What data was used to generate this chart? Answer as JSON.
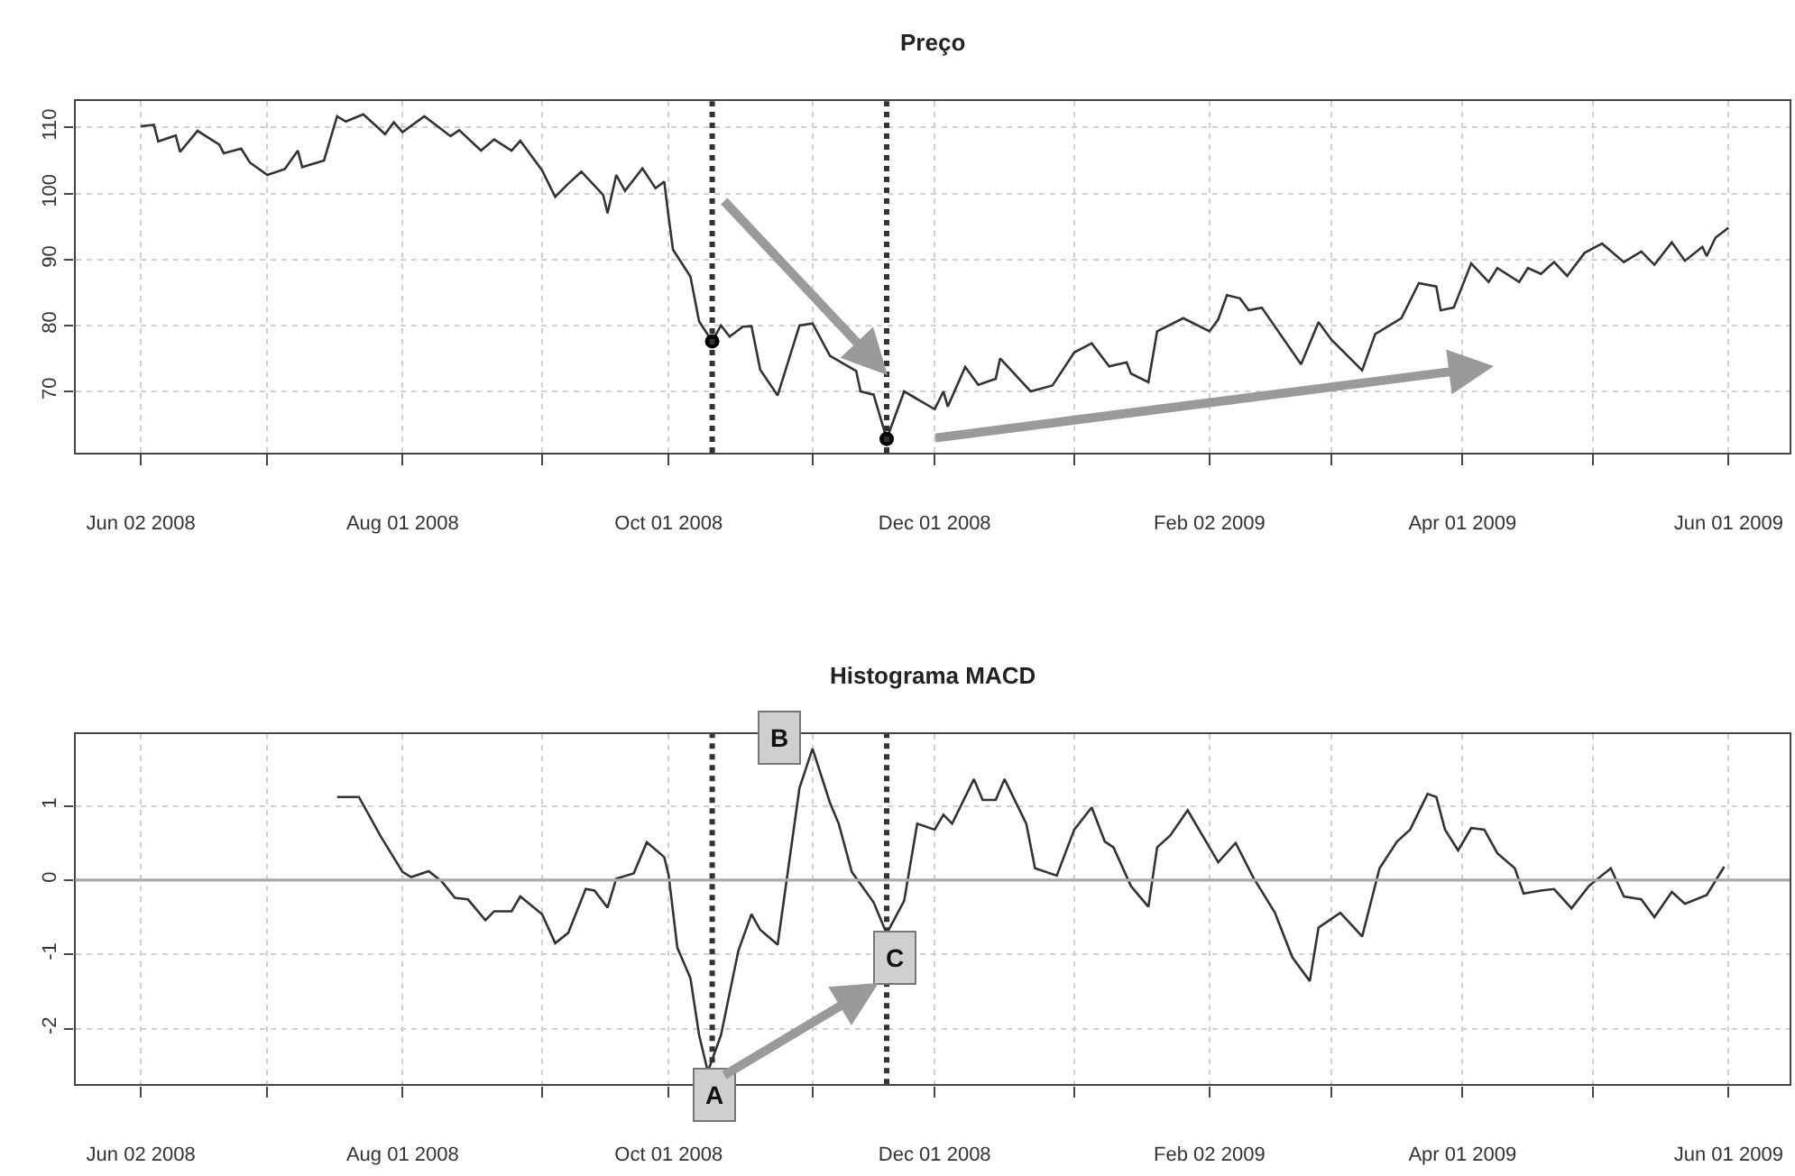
{
  "chart_data": [
    {
      "type": "line",
      "title": "Preço",
      "x": [
        "2008-06-02",
        "2008-06-05",
        "2008-06-06",
        "2008-06-10",
        "2008-06-11",
        "2008-06-15",
        "2008-06-20",
        "2008-06-21",
        "2008-06-25",
        "2008-06-27",
        "2008-07-01",
        "2008-07-05",
        "2008-07-08",
        "2008-07-09",
        "2008-07-14",
        "2008-07-17",
        "2008-07-19",
        "2008-07-23",
        "2008-07-28",
        "2008-07-30",
        "2008-08-01",
        "2008-08-06",
        "2008-08-12",
        "2008-08-14",
        "2008-08-19",
        "2008-08-22",
        "2008-08-26",
        "2008-08-28",
        "2008-09-02",
        "2008-09-05",
        "2008-09-08",
        "2008-09-11",
        "2008-09-16",
        "2008-09-17",
        "2008-09-19",
        "2008-09-21",
        "2008-09-25",
        "2008-09-28",
        "2008-09-30",
        "2008-10-01",
        "2008-10-02",
        "2008-10-06",
        "2008-10-08",
        "2008-10-11",
        "2008-10-13",
        "2008-10-15",
        "2008-10-18",
        "2008-10-20",
        "2008-10-22",
        "2008-10-26",
        "2008-10-31",
        "2008-11-03",
        "2008-11-07",
        "2008-11-13",
        "2008-11-14",
        "2008-11-17",
        "2008-11-20",
        "2008-11-24",
        "2008-12-01",
        "2008-12-03",
        "2008-12-04",
        "2008-12-08",
        "2008-12-11",
        "2008-12-15",
        "2008-12-16",
        "2008-12-23",
        "2008-12-28",
        "2009-01-02",
        "2009-01-06",
        "2009-01-10",
        "2009-01-14",
        "2009-01-15",
        "2009-01-19",
        "2009-01-21",
        "2009-01-27",
        "2009-02-02",
        "2009-02-04",
        "2009-02-06",
        "2009-02-09",
        "2009-02-11",
        "2009-02-14",
        "2009-02-23",
        "2009-02-27",
        "2009-03-02",
        "2009-03-09",
        "2009-03-12",
        "2009-03-18",
        "2009-03-22",
        "2009-03-26",
        "2009-03-27",
        "2009-03-30",
        "2009-04-03",
        "2009-04-07",
        "2009-04-09",
        "2009-04-14",
        "2009-04-16",
        "2009-04-19",
        "2009-04-22",
        "2009-04-25",
        "2009-04-29",
        "2009-05-03",
        "2009-05-08",
        "2009-05-12",
        "2009-05-15",
        "2009-05-19",
        "2009-05-22",
        "2009-05-26",
        "2009-05-27",
        "2009-05-29",
        "2009-06-01"
      ],
      "series": [
        {
          "color": "#333333",
          "values": [
            110.2,
            110.4,
            107.9,
            108.8,
            106.3,
            109.5,
            107.4,
            106.1,
            106.8,
            104.7,
            102.8,
            103.7,
            106.5,
            104.0,
            105.0,
            111.7,
            110.9,
            112.0,
            109.0,
            110.8,
            109.3,
            111.7,
            108.7,
            109.6,
            106.5,
            108.2,
            106.5,
            108.0,
            103.5,
            99.5,
            101.5,
            103.3,
            99.8,
            97.0,
            102.8,
            100.4,
            103.8,
            100.8,
            101.8,
            96.5,
            91.5,
            87.4,
            80.6,
            77.6,
            80.0,
            78.3,
            79.8,
            79.9,
            73.3,
            69.4,
            80.0,
            80.3,
            75.4,
            73.1,
            70.0,
            69.5,
            62.8,
            70.0,
            67.3,
            70.0,
            67.7,
            73.7,
            71.0,
            71.9,
            75.0,
            70.0,
            70.9,
            75.9,
            77.3,
            73.8,
            74.4,
            72.7,
            71.4,
            79.1,
            81.1,
            79.1,
            80.9,
            84.6,
            84.1,
            82.3,
            82.7,
            74.1,
            80.5,
            77.8,
            73.2,
            78.7,
            81.1,
            86.4,
            85.9,
            82.3,
            82.7,
            89.4,
            86.6,
            88.7,
            86.6,
            88.7,
            87.8,
            89.6,
            87.5,
            91.0,
            92.4,
            89.6,
            91.2,
            89.2,
            92.6,
            89.8,
            91.9,
            90.5,
            93.3,
            94.8
          ]
        },
        {
          "type": "scatter",
          "color": "#000000",
          "x": [
            "2008-10-11",
            "2008-11-20"
          ],
          "values": [
            77.6,
            62.8
          ]
        }
      ],
      "xlim": [
        "2008-05-18",
        "2009-06-15"
      ],
      "xticks": [
        {
          "value": "2008-06-02",
          "label": "Jun 02 2008"
        },
        {
          "value": "2008-07-01",
          "label": null
        },
        {
          "value": "2008-08-01",
          "label": "Aug 01 2008"
        },
        {
          "value": "2008-09-02",
          "label": null
        },
        {
          "value": "2008-10-01",
          "label": "Oct 01 2008"
        },
        {
          "value": "2008-11-03",
          "label": null
        },
        {
          "value": "2008-12-01",
          "label": "Dec 01 2008"
        },
        {
          "value": "2009-01-02",
          "label": null
        },
        {
          "value": "2009-02-02",
          "label": "Feb 02 2009"
        },
        {
          "value": "2009-03-02",
          "label": null
        },
        {
          "value": "2009-04-01",
          "label": "Apr 01 2009"
        },
        {
          "value": "2009-05-01",
          "label": null
        },
        {
          "value": "2009-06-01",
          "label": "Jun 01 2009"
        }
      ],
      "ylim": [
        60.7,
        114
      ],
      "yticks": [
        70,
        80,
        90,
        100,
        110
      ],
      "grid": true,
      "ref_lines": [
        {
          "axis": "x",
          "value": "2008-10-11",
          "line_style": "dotted",
          "color": "#333333"
        },
        {
          "axis": "x",
          "value": "2008-11-20",
          "line_style": "dotted",
          "color": "#333333"
        }
      ]
    },
    {
      "type": "line",
      "title": "Histograma MACD",
      "x": [
        "2008-07-17",
        "2008-07-22",
        "2008-07-27",
        "2008-08-01",
        "2008-08-03",
        "2008-08-07",
        "2008-08-10",
        "2008-08-13",
        "2008-08-16",
        "2008-08-20",
        "2008-08-22",
        "2008-08-26",
        "2008-08-28",
        "2008-09-02",
        "2008-09-05",
        "2008-09-08",
        "2008-09-12",
        "2008-09-14",
        "2008-09-17",
        "2008-09-19",
        "2008-09-23",
        "2008-09-26",
        "2008-09-30",
        "2008-10-01",
        "2008-10-03",
        "2008-10-06",
        "2008-10-08",
        "2008-10-10",
        "2008-10-13",
        "2008-10-17",
        "2008-10-20",
        "2008-10-22",
        "2008-10-26",
        "2008-10-31",
        "2008-11-03",
        "2008-11-07",
        "2008-11-09",
        "2008-11-12",
        "2008-11-17",
        "2008-11-20",
        "2008-11-24",
        "2008-11-27",
        "2008-12-01",
        "2008-12-03",
        "2008-12-05",
        "2008-12-10",
        "2008-12-12",
        "2008-12-15",
        "2008-12-17",
        "2008-12-22",
        "2008-12-24",
        "2008-12-29",
        "2009-01-02",
        "2009-01-06",
        "2009-01-09",
        "2009-01-11",
        "2009-01-15",
        "2009-01-19",
        "2009-01-21",
        "2009-01-24",
        "2009-01-28",
        "2009-02-04",
        "2009-02-08",
        "2009-02-12",
        "2009-02-17",
        "2009-02-21",
        "2009-02-25",
        "2009-02-27",
        "2009-03-04",
        "2009-03-09",
        "2009-03-13",
        "2009-03-17",
        "2009-03-20",
        "2009-03-24",
        "2009-03-26",
        "2009-03-28",
        "2009-03-31",
        "2009-04-03",
        "2009-04-06",
        "2009-04-09",
        "2009-04-13",
        "2009-04-15",
        "2009-04-19",
        "2009-04-22",
        "2009-04-26",
        "2009-04-30",
        "2009-05-05",
        "2009-05-08",
        "2009-05-12",
        "2009-05-15",
        "2009-05-19",
        "2009-05-22",
        "2009-05-27",
        "2009-05-31"
      ],
      "series": [
        {
          "color": "#333333",
          "values": [
            1.12,
            1.12,
            0.59,
            0.11,
            0.04,
            0.12,
            -0.02,
            -0.24,
            -0.26,
            -0.54,
            -0.42,
            -0.42,
            -0.22,
            -0.46,
            -0.85,
            -0.71,
            -0.12,
            -0.14,
            -0.37,
            0.02,
            0.09,
            0.51,
            0.31,
            0.07,
            -0.91,
            -1.32,
            -2.09,
            -2.58,
            -2.09,
            -0.95,
            -0.46,
            -0.67,
            -0.87,
            1.24,
            1.77,
            1.04,
            0.76,
            0.11,
            -0.3,
            -0.72,
            -0.28,
            0.76,
            0.68,
            0.88,
            0.76,
            1.36,
            1.08,
            1.08,
            1.36,
            0.76,
            0.16,
            0.06,
            0.68,
            0.98,
            0.52,
            0.44,
            -0.08,
            -0.36,
            0.44,
            0.6,
            0.94,
            0.24,
            0.5,
            0.04,
            -0.44,
            -1.04,
            -1.36,
            -0.64,
            -0.44,
            -0.76,
            0.16,
            0.52,
            0.68,
            1.16,
            1.12,
            0.68,
            0.4,
            0.7,
            0.68,
            0.36,
            0.16,
            -0.18,
            -0.14,
            -0.12,
            -0.38,
            -0.08,
            0.16,
            -0.22,
            -0.26,
            -0.5,
            -0.16,
            -0.32,
            -0.2,
            0.18
          ]
        }
      ],
      "xlim": [
        "2008-05-18",
        "2009-06-15"
      ],
      "xticks": [
        {
          "value": "2008-06-02",
          "label": "Jun 02 2008"
        },
        {
          "value": "2008-07-01",
          "label": null
        },
        {
          "value": "2008-08-01",
          "label": "Aug 01 2008"
        },
        {
          "value": "2008-09-02",
          "label": null
        },
        {
          "value": "2008-10-01",
          "label": "Oct 01 2008"
        },
        {
          "value": "2008-11-03",
          "label": null
        },
        {
          "value": "2008-12-01",
          "label": "Dec 01 2008"
        },
        {
          "value": "2009-01-02",
          "label": null
        },
        {
          "value": "2009-02-02",
          "label": "Feb 02 2009"
        },
        {
          "value": "2009-03-02",
          "label": null
        },
        {
          "value": "2009-04-01",
          "label": "Apr 01 2009"
        },
        {
          "value": "2009-05-01",
          "label": null
        },
        {
          "value": "2009-06-01",
          "label": "Jun 01 2009"
        }
      ],
      "ylim": [
        -2.75,
        1.97
      ],
      "yticks": [
        -2,
        -1,
        0,
        1
      ],
      "grid": true,
      "ref_lines": [
        {
          "axis": "y",
          "value": 0,
          "line_style": "solid",
          "color": "#aaaaaa"
        },
        {
          "axis": "x",
          "value": "2008-10-11",
          "line_style": "dotted",
          "color": "#333333"
        },
        {
          "axis": "x",
          "value": "2008-11-20",
          "line_style": "dotted",
          "color": "#333333"
        }
      ],
      "annotations": [
        {
          "text": "A",
          "x": "2008-10-10",
          "y": -2.58
        },
        {
          "text": "B",
          "x": "2008-11-03",
          "y": 1.77
        },
        {
          "text": "C",
          "x": "2008-11-20",
          "y": -0.72
        }
      ]
    }
  ]
}
